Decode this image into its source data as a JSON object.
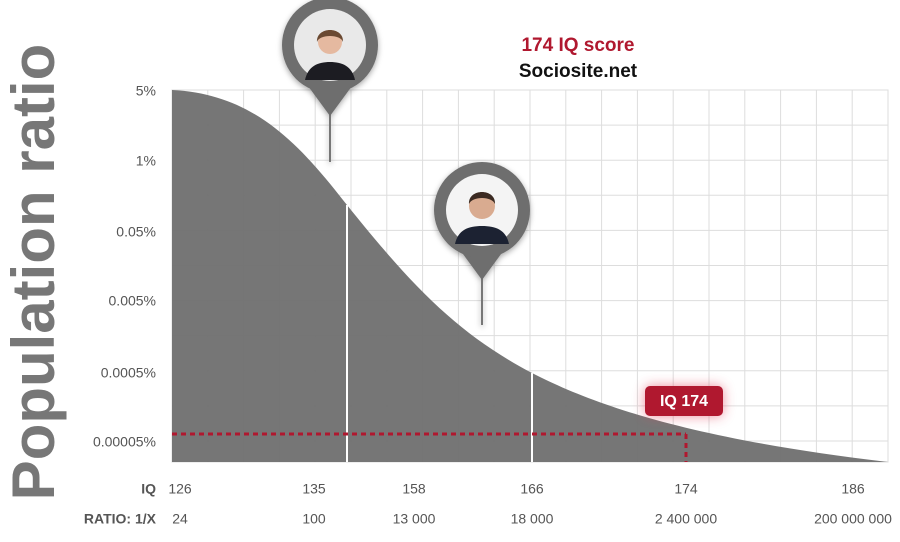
{
  "header": {
    "title": "174 IQ score",
    "source": "Sociosite.net"
  },
  "y_axis": {
    "title": "Population ratio",
    "labels": [
      "5%",
      "1%",
      "0.05%",
      "0.005%",
      "0.0005%",
      "0.00005%"
    ]
  },
  "x_rows": [
    {
      "label": "IQ",
      "values": [
        "126",
        "135",
        "158",
        "166",
        "174",
        "186"
      ]
    },
    {
      "label": "RATIO: 1/X",
      "values": [
        "24",
        "100",
        "13 000",
        "18 000",
        "2 400 000",
        "200 000 000"
      ]
    }
  ],
  "marker": {
    "label": "IQ 174"
  }
}
